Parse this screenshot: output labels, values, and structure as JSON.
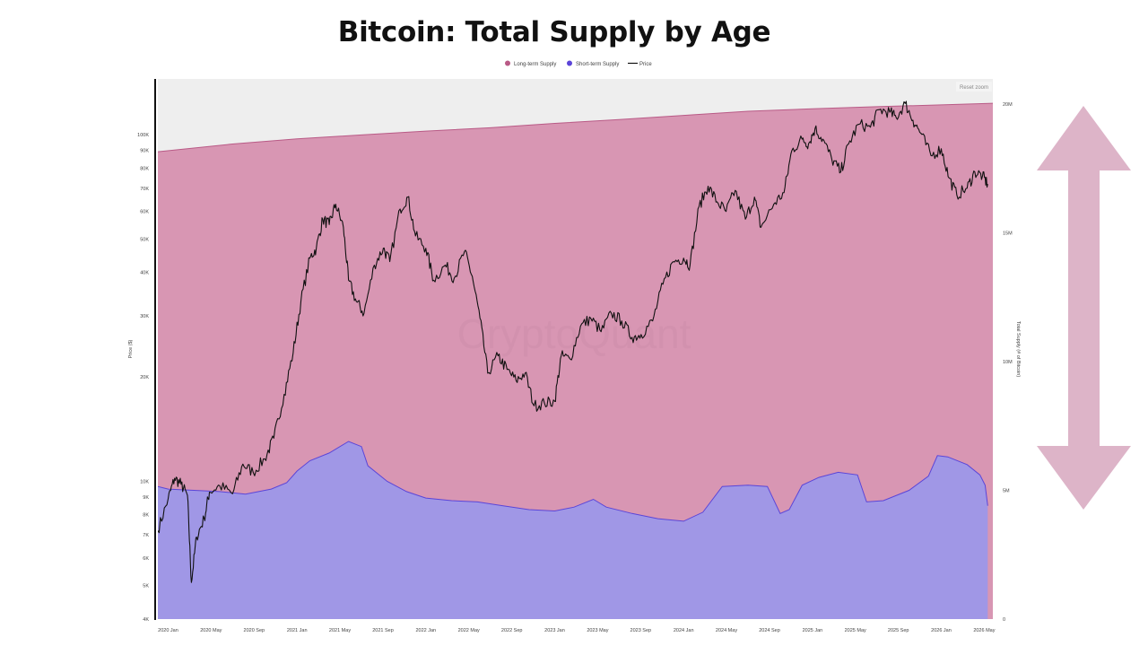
{
  "title": "Bitcoin: Total Supply by Age",
  "reset_zoom_label": "Reset zoom",
  "watermark": "CryptoQuant",
  "colors": {
    "long_term": "#d896b3",
    "long_term_line": "#b95a86",
    "short_term": "#a097e6",
    "short_term_line": "#5b45d8",
    "price": "#111111",
    "background_band": "#eeeeee",
    "arrow": "#ddb4c8"
  },
  "chart_data": {
    "type": "area",
    "title": "Bitcoin: Total Supply by Age",
    "legend": [
      "Long-term Supply",
      "Short-term Supply",
      "Price"
    ],
    "legend_placement": "top-center",
    "y_left_label": "Price ($)",
    "y_right_label": "Total Supply (# of Bitcoin)",
    "y_left_scale": "log",
    "y_left_range": [
      4000,
      130000
    ],
    "y_left_ticks": [
      "100K",
      "90K",
      "80K",
      "70K",
      "60K",
      "50K",
      "40K",
      "30K",
      "20K",
      "10K",
      "9K",
      "8K",
      "7K",
      "6K",
      "5K",
      "4K"
    ],
    "y_left_tick_values": [
      100000,
      90000,
      80000,
      70000,
      60000,
      50000,
      40000,
      30000,
      20000,
      10000,
      9000,
      8000,
      7000,
      6000,
      5000,
      4000
    ],
    "y_right_range": [
      0,
      21000000
    ],
    "y_right_ticks": [
      "20M",
      "15M",
      "10M",
      "5M",
      "0"
    ],
    "y_right_tick_values": [
      20000000,
      15000000,
      10000000,
      5000000,
      0
    ],
    "x_ticks": [
      "2020 Jan",
      "2020 May",
      "2020 Sep",
      "2021 Jan",
      "2021 May",
      "2021 Sep",
      "2022 Jan",
      "2022 May",
      "2022 Sep",
      "2023 Jan",
      "2023 May",
      "2023 Sep",
      "2024 Jan",
      "2024 May",
      "2024 Sep",
      "2025 Jan",
      "2025 May",
      "2025 Sep",
      "2026 Jan",
      "2026 May"
    ],
    "x_tick_values": [
      2020.0,
      2020.333,
      2020.667,
      2021.0,
      2021.333,
      2021.667,
      2022.0,
      2022.333,
      2022.667,
      2023.0,
      2023.333,
      2023.667,
      2024.0,
      2024.333,
      2024.667,
      2025.0,
      2025.333,
      2025.667,
      2026.0,
      2026.333
    ],
    "x_range": [
      2019.92,
      2026.4
    ],
    "grid": false,
    "series": [
      {
        "name": "Long-term Supply",
        "axis": "right",
        "points": [
          [
            2019.92,
            18150000
          ],
          [
            2020.5,
            18450000
          ],
          [
            2021.0,
            18650000
          ],
          [
            2021.5,
            18800000
          ],
          [
            2022.0,
            18950000
          ],
          [
            2022.5,
            19080000
          ],
          [
            2023.0,
            19250000
          ],
          [
            2023.5,
            19400000
          ],
          [
            2024.0,
            19560000
          ],
          [
            2024.5,
            19720000
          ],
          [
            2025.0,
            19820000
          ],
          [
            2025.5,
            19900000
          ],
          [
            2026.0,
            19970000
          ],
          [
            2026.4,
            20030000
          ]
        ]
      },
      {
        "name": "Short-term Supply",
        "axis": "right",
        "points": [
          [
            2019.92,
            5150000
          ],
          [
            2020.0,
            5050000
          ],
          [
            2020.2,
            5000000
          ],
          [
            2020.4,
            4950000
          ],
          [
            2020.6,
            4850000
          ],
          [
            2020.8,
            5050000
          ],
          [
            2020.92,
            5300000
          ],
          [
            2021.0,
            5750000
          ],
          [
            2021.1,
            6150000
          ],
          [
            2021.25,
            6450000
          ],
          [
            2021.4,
            6900000
          ],
          [
            2021.5,
            6700000
          ],
          [
            2021.55,
            5950000
          ],
          [
            2021.7,
            5350000
          ],
          [
            2021.85,
            4950000
          ],
          [
            2022.0,
            4700000
          ],
          [
            2022.2,
            4600000
          ],
          [
            2022.4,
            4550000
          ],
          [
            2022.6,
            4400000
          ],
          [
            2022.8,
            4250000
          ],
          [
            2023.0,
            4200000
          ],
          [
            2023.15,
            4350000
          ],
          [
            2023.3,
            4650000
          ],
          [
            2023.4,
            4350000
          ],
          [
            2023.6,
            4100000
          ],
          [
            2023.8,
            3900000
          ],
          [
            2024.0,
            3800000
          ],
          [
            2024.15,
            4150000
          ],
          [
            2024.3,
            5150000
          ],
          [
            2024.5,
            5200000
          ],
          [
            2024.65,
            5150000
          ],
          [
            2024.75,
            4100000
          ],
          [
            2024.82,
            4250000
          ],
          [
            2024.92,
            5200000
          ],
          [
            2025.05,
            5500000
          ],
          [
            2025.2,
            5700000
          ],
          [
            2025.35,
            5600000
          ],
          [
            2025.42,
            4550000
          ],
          [
            2025.55,
            4600000
          ],
          [
            2025.75,
            5000000
          ],
          [
            2025.9,
            5550000
          ],
          [
            2025.97,
            6350000
          ],
          [
            2026.05,
            6300000
          ],
          [
            2026.2,
            6000000
          ],
          [
            2026.3,
            5600000
          ],
          [
            2026.34,
            5200000
          ],
          [
            2026.36,
            4400000
          ]
        ]
      },
      {
        "name": "Price",
        "axis": "left",
        "points": [
          [
            2019.92,
            7200
          ],
          [
            2020.0,
            8900
          ],
          [
            2020.05,
            10200
          ],
          [
            2020.1,
            9800
          ],
          [
            2020.15,
            9100
          ],
          [
            2020.18,
            5100
          ],
          [
            2020.22,
            6900
          ],
          [
            2020.28,
            7800
          ],
          [
            2020.32,
            9300
          ],
          [
            2020.4,
            9700
          ],
          [
            2020.5,
            9200
          ],
          [
            2020.58,
            11200
          ],
          [
            2020.66,
            10600
          ],
          [
            2020.75,
            11600
          ],
          [
            2020.82,
            13300
          ],
          [
            2020.9,
            17800
          ],
          [
            2020.97,
            23500
          ],
          [
            2021.03,
            33000
          ],
          [
            2021.1,
            44000
          ],
          [
            2021.15,
            47000
          ],
          [
            2021.2,
            57000
          ],
          [
            2021.25,
            55000
          ],
          [
            2021.3,
            63000
          ],
          [
            2021.36,
            54000
          ],
          [
            2021.4,
            38000
          ],
          [
            2021.46,
            33000
          ],
          [
            2021.52,
            30500
          ],
          [
            2021.6,
            42000
          ],
          [
            2021.67,
            47000
          ],
          [
            2021.72,
            43000
          ],
          [
            2021.8,
            61000
          ],
          [
            2021.86,
            66000
          ],
          [
            2021.92,
            51000
          ],
          [
            2022.0,
            47000
          ],
          [
            2022.06,
            38000
          ],
          [
            2022.15,
            42000
          ],
          [
            2022.22,
            38500
          ],
          [
            2022.3,
            46000
          ],
          [
            2022.36,
            39000
          ],
          [
            2022.42,
            29500
          ],
          [
            2022.48,
            20500
          ],
          [
            2022.56,
            23000
          ],
          [
            2022.63,
            21000
          ],
          [
            2022.7,
            19500
          ],
          [
            2022.77,
            20500
          ],
          [
            2022.84,
            16500
          ],
          [
            2022.92,
            16800
          ],
          [
            2023.0,
            17000
          ],
          [
            2023.05,
            23000
          ],
          [
            2023.12,
            22500
          ],
          [
            2023.2,
            28000
          ],
          [
            2023.28,
            29500
          ],
          [
            2023.36,
            27000
          ],
          [
            2023.44,
            30500
          ],
          [
            2023.52,
            29000
          ],
          [
            2023.6,
            26000
          ],
          [
            2023.67,
            26500
          ],
          [
            2023.76,
            29000
          ],
          [
            2023.84,
            37000
          ],
          [
            2023.92,
            43000
          ],
          [
            2024.0,
            44000
          ],
          [
            2024.05,
            42000
          ],
          [
            2024.12,
            62000
          ],
          [
            2024.19,
            71000
          ],
          [
            2024.26,
            64000
          ],
          [
            2024.33,
            60000
          ],
          [
            2024.4,
            69000
          ],
          [
            2024.48,
            57000
          ],
          [
            2024.55,
            66000
          ],
          [
            2024.6,
            54000
          ],
          [
            2024.7,
            63000
          ],
          [
            2024.78,
            68000
          ],
          [
            2024.84,
            90000
          ],
          [
            2024.92,
            97000
          ],
          [
            2024.97,
            94000
          ],
          [
            2025.02,
            104000
          ],
          [
            2025.08,
            97000
          ],
          [
            2025.15,
            85000
          ],
          [
            2025.22,
            78000
          ],
          [
            2025.28,
            94000
          ],
          [
            2025.36,
            107000
          ],
          [
            2025.45,
            105000
          ],
          [
            2025.52,
            118000
          ],
          [
            2025.6,
            116000
          ],
          [
            2025.65,
            112000
          ],
          [
            2025.72,
            123000
          ],
          [
            2025.78,
            110000
          ],
          [
            2025.84,
            101000
          ],
          [
            2025.92,
            87000
          ],
          [
            2026.0,
            91000
          ],
          [
            2026.06,
            75000
          ],
          [
            2026.12,
            67000
          ],
          [
            2026.2,
            70000
          ],
          [
            2026.26,
            78000
          ],
          [
            2026.32,
            76000
          ],
          [
            2026.36,
            72000
          ]
        ]
      }
    ]
  }
}
